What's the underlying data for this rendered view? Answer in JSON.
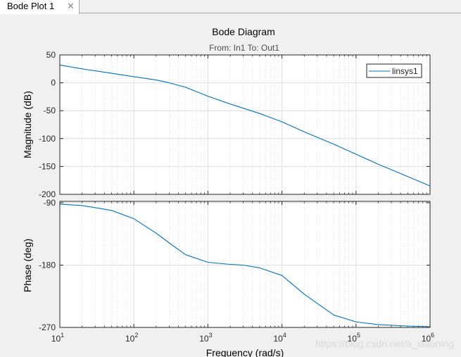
{
  "window": {
    "tab_label": "Bode Plot 1",
    "close_glyph": "✕"
  },
  "watermark": "https://blog.csdn.net/a_xiaoning",
  "chart_data": {
    "type": "line",
    "title": "Bode Diagram",
    "subtitle": "From: In1  To: Out1",
    "xlabel": "Frequency  (rad/s)",
    "xscale": "log",
    "xlim": [
      10,
      1000000
    ],
    "x_ticks": [
      10,
      100,
      1000,
      10000,
      100000,
      1000000
    ],
    "x_tick_labels": [
      {
        "base": "10",
        "exp": "1"
      },
      {
        "base": "10",
        "exp": "2"
      },
      {
        "base": "10",
        "exp": "3"
      },
      {
        "base": "10",
        "exp": "4"
      },
      {
        "base": "10",
        "exp": "5"
      },
      {
        "base": "10",
        "exp": "6"
      }
    ],
    "grid": true,
    "line_color": "#0072bd",
    "legend": {
      "entries": [
        "linsys1"
      ],
      "location": "top-right"
    },
    "magnitude": {
      "ylabel": "Magnitude (dB)",
      "ylim": [
        -200,
        50
      ],
      "y_ticks": [
        50,
        0,
        -50,
        -100,
        -150,
        -200
      ],
      "y_tick_labels": [
        "50",
        "0",
        "-50",
        "-100",
        "-150",
        "-200"
      ],
      "series": [
        {
          "name": "linsys1",
          "x": [
            10,
            20,
            50,
            100,
            200,
            300,
            500,
            1000,
            2000,
            5000,
            10000,
            20000,
            50000,
            100000,
            200000,
            500000,
            1000000
          ],
          "y": [
            32,
            25,
            17,
            11,
            5,
            0,
            -8,
            -24,
            -38,
            -55,
            -70,
            -88,
            -110,
            -128,
            -146,
            -168,
            -185
          ]
        }
      ]
    },
    "phase": {
      "ylabel": "Phase (deg)",
      "ylim": [
        -270,
        -88
      ],
      "y_ticks": [
        -90,
        -180,
        -270
      ],
      "y_tick_labels": [
        "-90",
        "-180",
        "-270"
      ],
      "series": [
        {
          "name": "linsys1",
          "x": [
            10,
            20,
            50,
            100,
            200,
            300,
            500,
            1000,
            2000,
            3000,
            5000,
            10000,
            20000,
            50000,
            100000,
            200000,
            500000,
            1000000
          ],
          "y": [
            -92,
            -94,
            -101,
            -113,
            -134,
            -148,
            -165,
            -176,
            -179,
            -180,
            -184,
            -195,
            -222,
            -252,
            -262,
            -266,
            -268,
            -269
          ]
        }
      ]
    }
  }
}
